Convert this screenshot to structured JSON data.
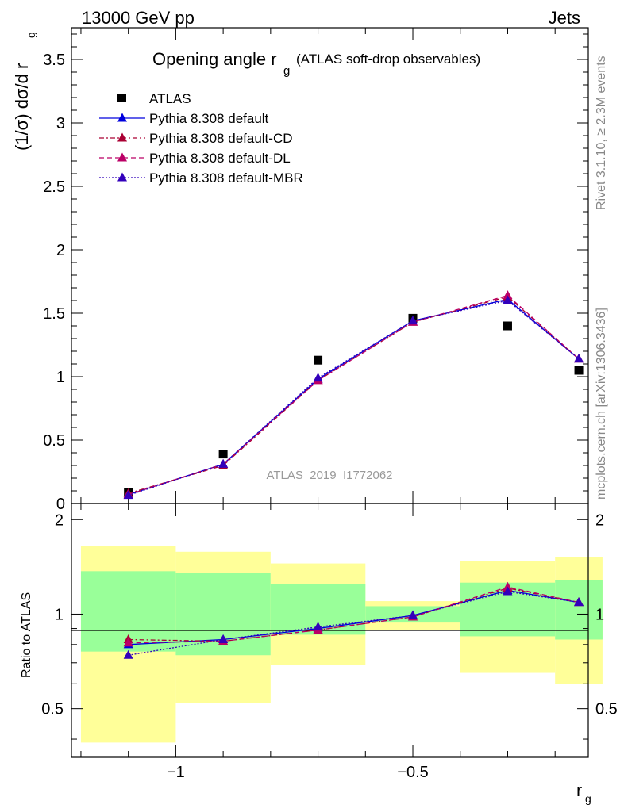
{
  "header": {
    "energy": "13000 GeV pp",
    "category": "Jets",
    "rivet_label": "Rivet 3.1.10, ≥ 2.3M events",
    "mcplots_label": "mcplots.cern.ch [arXiv:1306.3436]",
    "analysis_id": "ATLAS_2019_I1772062"
  },
  "chart_data": [
    {
      "type": "scatter",
      "title_main": "Opening angle r",
      "title_sub": "g",
      "title_paren": "(ATLAS soft-drop observables)",
      "ylabel_main": "(1/σ) dσ/d r",
      "ylabel_sub": "g",
      "xlim": [
        -1.22,
        -0.13
      ],
      "ylim": [
        0,
        3.75
      ],
      "yticks": [
        0.5,
        1,
        1.5,
        2,
        2.5,
        3,
        3.5
      ],
      "ytick_labels": [
        "0.5",
        "1",
        "1.5",
        "2",
        "2.5",
        "3",
        "3.5"
      ],
      "ytick_zero_label": "0",
      "legend_position": "top-left",
      "x": [
        -1.1,
        -0.9,
        -0.7,
        -0.5,
        -0.3,
        -0.15
      ],
      "series": [
        {
          "name": "ATLAS",
          "values": [
            0.09,
            0.39,
            1.13,
            1.46,
            1.4,
            1.05
          ],
          "color": "#000000",
          "marker": "square"
        },
        {
          "name": "Pythia 8.308 default",
          "values": [
            0.07,
            0.31,
            0.98,
            1.44,
            1.61,
            1.14
          ],
          "color": "#0000dd",
          "marker": "triangle",
          "dash": ""
        },
        {
          "name": "Pythia 8.308 default-CD",
          "values": [
            0.08,
            0.3,
            0.97,
            1.43,
            1.63,
            1.14
          ],
          "color": "#aa0033",
          "marker": "triangle",
          "dash": "6 3 2 3"
        },
        {
          "name": "Pythia 8.308 default-DL",
          "values": [
            0.07,
            0.31,
            0.97,
            1.43,
            1.64,
            1.14
          ],
          "color": "#bb0066",
          "marker": "triangle",
          "dash": "6 4"
        },
        {
          "name": "Pythia 8.308 default-MBR",
          "values": [
            0.065,
            0.31,
            0.99,
            1.44,
            1.6,
            1.14
          ],
          "color": "#3300bb",
          "marker": "triangle",
          "dash": "2 2"
        }
      ]
    },
    {
      "type": "scatter",
      "ylabel": "Ratio to ATLAS",
      "xlabel_main": "r",
      "xlabel_sub": "g",
      "xlim": [
        -1.22,
        -0.13
      ],
      "ylim": [
        0.35,
        2.25
      ],
      "yticks": [
        0.5,
        1,
        2
      ],
      "ytick_labels": [
        "0.5",
        "1",
        "2"
      ],
      "xticks": [
        -1,
        -0.5
      ],
      "xtick_labels": [
        "−1",
        "−0.5"
      ],
      "reference_line": 1,
      "bins": [
        {
          "x_low": -1.2,
          "x_high": -1.0,
          "yellow": [
            0.39,
            1.65
          ],
          "green": [
            0.76,
            1.37
          ]
        },
        {
          "x_low": -1.0,
          "x_high": -0.8,
          "yellow": [
            0.52,
            1.58
          ],
          "green": [
            0.74,
            1.35
          ]
        },
        {
          "x_low": -0.8,
          "x_high": -0.6,
          "yellow": [
            0.69,
            1.45
          ],
          "green": [
            0.86,
            1.25
          ]
        },
        {
          "x_low": -0.6,
          "x_high": -0.4,
          "yellow": [
            0.89,
            1.1
          ],
          "green": [
            0.94,
            1.06
          ]
        },
        {
          "x_low": -0.4,
          "x_high": -0.2,
          "yellow": [
            0.65,
            1.48
          ],
          "green": [
            0.85,
            1.26
          ]
        },
        {
          "x_low": -0.2,
          "x_high": -0.1,
          "yellow": [
            0.6,
            1.52
          ],
          "green": [
            0.83,
            1.28
          ]
        }
      ],
      "x": [
        -1.1,
        -0.9,
        -0.7,
        -0.5,
        -0.3,
        -0.15
      ],
      "series": [
        {
          "name": "Pythia 8.308 default",
          "values": [
            0.8,
            0.83,
            0.9,
            0.99,
            1.19,
            1.09
          ],
          "color": "#0000dd",
          "dash": ""
        },
        {
          "name": "Pythia 8.308 default-CD",
          "values": [
            0.83,
            0.82,
            0.89,
            0.98,
            1.21,
            1.09
          ],
          "color": "#aa0033",
          "dash": "6 3 2 3"
        },
        {
          "name": "Pythia 8.308 default-DL",
          "values": [
            0.81,
            0.82,
            0.89,
            0.98,
            1.22,
            1.09
          ],
          "color": "#bb0066",
          "dash": "6 4"
        },
        {
          "name": "Pythia 8.308 default-MBR",
          "values": [
            0.74,
            0.83,
            0.91,
            0.99,
            1.18,
            1.09
          ],
          "color": "#3300bb",
          "dash": "2 2"
        }
      ]
    }
  ]
}
